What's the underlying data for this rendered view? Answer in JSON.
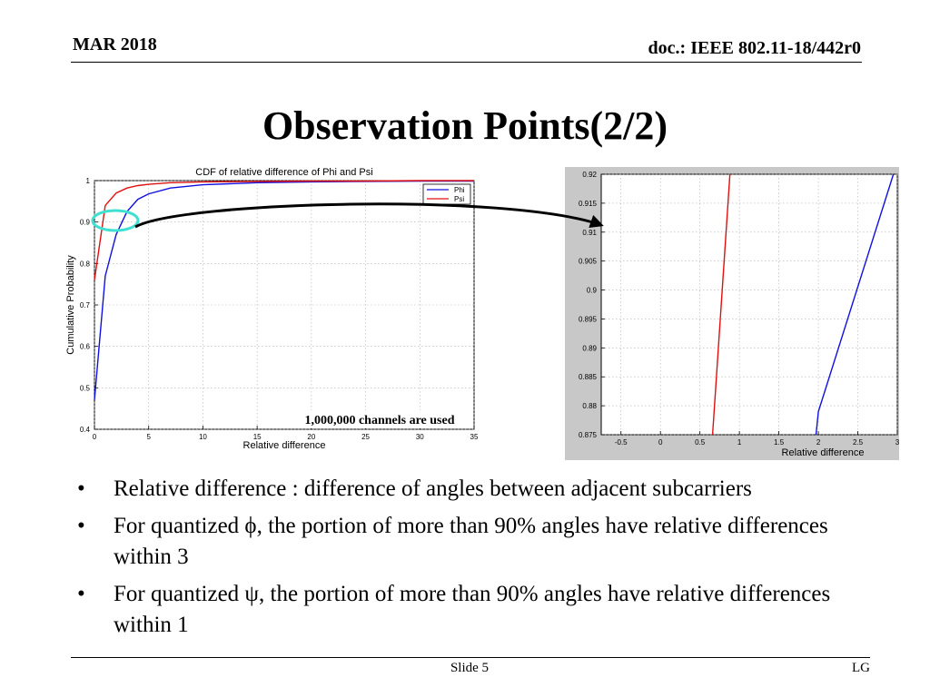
{
  "header": {
    "date": "MAR 2018",
    "doc": "doc.: IEEE 802.11-18/442r0"
  },
  "title": "Observation Points(2/2)",
  "bullets": [
    "Relative difference : difference of angles between adjacent subcarriers",
    "For quantized ϕ, the portion of more than 90% angles have relative differences within 3",
    "For quantized ψ, the portion of more than 90% angles have relative differences within 1"
  ],
  "bullet_symbol": "•",
  "footer": {
    "slide": "Slide 5",
    "company": "LG"
  },
  "colors": {
    "phi": "#1010e0",
    "psi": "#e01010",
    "highlight": "#40e0d0",
    "zoom_bg": "#c8c8c8"
  },
  "chart_data": [
    {
      "type": "line",
      "title": "CDF of relative difference of Phi and Psi",
      "xlabel": "Relative difference",
      "ylabel": "Cumulative Probability",
      "xlim": [
        0,
        35
      ],
      "ylim": [
        0.4,
        1
      ],
      "xticks": [
        0,
        5,
        10,
        15,
        20,
        25,
        30,
        35
      ],
      "yticks": [
        0.4,
        0.5,
        0.6,
        0.7,
        0.8,
        0.9,
        1
      ],
      "grid": true,
      "legend": "top-right",
      "annotation": "1,000,000 channels are used",
      "series": [
        {
          "name": "Phi",
          "x": [
            0,
            1,
            2,
            3,
            4,
            5,
            7,
            10,
            15,
            20,
            25,
            30,
            35
          ],
          "y": [
            0.47,
            0.77,
            0.87,
            0.925,
            0.955,
            0.968,
            0.982,
            0.99,
            0.995,
            0.997,
            0.998,
            0.999,
            0.999
          ]
        },
        {
          "name": "Psi",
          "x": [
            0,
            1,
            2,
            3,
            4,
            5,
            7,
            10,
            15,
            20,
            25,
            30,
            35
          ],
          "y": [
            0.76,
            0.94,
            0.97,
            0.982,
            0.988,
            0.991,
            0.995,
            0.997,
            0.998,
            0.999,
            0.999,
            1.0,
            1.0
          ]
        }
      ]
    },
    {
      "type": "line",
      "title": "",
      "xlabel": "Relative difference",
      "ylabel": "",
      "xlim": [
        -0.75,
        3
      ],
      "ylim": [
        0.875,
        0.92
      ],
      "xticks": [
        -0.5,
        0,
        0.5,
        1,
        1.5,
        2,
        2.5,
        3
      ],
      "yticks": [
        0.875,
        0.88,
        0.885,
        0.89,
        0.895,
        0.9,
        0.905,
        0.91,
        0.915,
        0.92
      ],
      "grid": true,
      "series": [
        {
          "name": "",
          "x": [
            0.66,
            0.88
          ],
          "y": [
            0.875,
            0.92
          ]
        },
        {
          "name": "",
          "x": [
            1.97,
            2.0,
            2.95
          ],
          "y": [
            0.875,
            0.879,
            0.92
          ]
        }
      ]
    }
  ]
}
